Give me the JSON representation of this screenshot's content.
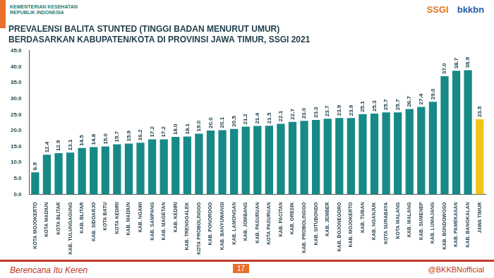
{
  "chart_data": {
    "type": "bar",
    "title": "PREVALENSI BALITA STUNTED (TINGGI BADAN MENURUT UMUR)",
    "subtitle": "BERDASARKAN KABUPATEN/KOTA DI PROVINSI JAWA TIMUR, SSGI 2021",
    "categories": [
      "KOTA MOJOKERTO",
      "KOTA MADIUN",
      "KOTA BLITAR",
      "KAB. TULUNGAGUNG",
      "KAB. BLITAR",
      "KAB. SIDOARJO",
      "KOTA BATU",
      "KOTA KEDIRI",
      "KAB. MADIUN",
      "KAB. NGAWI",
      "KAB. SAMPANG",
      "KAB. MAGETAN",
      "KAB. KEDIRI",
      "KAB. TRENGGALEK",
      "KOTA PROBOLINGGO",
      "KAB. PONOROGO",
      "KAB. BANYUWANGI",
      "KAB. LAMONGAN",
      "KAB. JOMBANG",
      "KAB. PASURUAN",
      "KOTA PASURUAN",
      "KAB. PACITAN",
      "KAB. GRESIK",
      "KAB. PROBOLINGGO",
      "KAB. SITUBONDO",
      "KAB. JEMBER",
      "KAB. BOJONEGORO",
      "KAB. MOJOKERTO",
      "KAB. TUBAN",
      "KAB. NGANJUK",
      "KOTA SURABAYA",
      "KOTA MALANG",
      "KAB. MALANG",
      "KAB. SUMENEP",
      "KAB. LUMAJANG",
      "KAB. BONDOWOSO",
      "KAB. PAMEKASAN",
      "KAB. BANGKALAN",
      "JAWA TIMUR"
    ],
    "values": [
      6.9,
      12.4,
      12.9,
      13.1,
      14.5,
      14.8,
      15.0,
      15.7,
      15.9,
      16.2,
      17.2,
      17.2,
      18.0,
      18.1,
      19.0,
      20.0,
      20.1,
      20.5,
      21.2,
      21.4,
      21.5,
      22.1,
      22.7,
      23.0,
      23.3,
      23.7,
      23.9,
      23.9,
      25.1,
      25.3,
      25.7,
      25.7,
      26.7,
      27.4,
      29.0,
      37.0,
      38.7,
      38.9,
      23.5
    ],
    "value_labels": [
      "6.9",
      "12.4",
      "12.9",
      "13.1",
      "14.5",
      "14.8",
      "15.0",
      "15.7",
      "15.9",
      "16.2",
      "17.2",
      "17.2",
      "18.0",
      "18.1",
      "19.0",
      "20.0",
      "20.1",
      "20.5",
      "21.2",
      "21.4",
      "21.5",
      "22.1",
      "22.7",
      "23.0",
      "23.3",
      "23.7",
      "23.9",
      "23.9",
      "25.1",
      "25.3",
      "25.7",
      "25.7",
      "26.7",
      "27.4",
      "29.0",
      "37.0",
      "38.7",
      "38.9",
      "23.5"
    ],
    "colors": [
      "#178a87",
      "#178a87",
      "#178a87",
      "#178a87",
      "#178a87",
      "#178a87",
      "#178a87",
      "#178a87",
      "#178a87",
      "#178a87",
      "#178a87",
      "#178a87",
      "#178a87",
      "#178a87",
      "#178a87",
      "#178a87",
      "#178a87",
      "#178a87",
      "#178a87",
      "#178a87",
      "#178a87",
      "#178a87",
      "#178a87",
      "#178a87",
      "#178a87",
      "#178a87",
      "#178a87",
      "#178a87",
      "#178a87",
      "#178a87",
      "#178a87",
      "#178a87",
      "#178a87",
      "#178a87",
      "#178a87",
      "#178a87",
      "#178a87",
      "#178a87",
      "#f0c419"
    ],
    "ylim": [
      0,
      45
    ],
    "yticks": [
      {
        "value": 0,
        "label": "0.0"
      },
      {
        "value": 5,
        "label": "5.0"
      },
      {
        "value": 10,
        "label": "10.0"
      },
      {
        "value": 15,
        "label": "15.0"
      },
      {
        "value": 20,
        "label": "20.0"
      },
      {
        "value": 25,
        "label": "25.0"
      },
      {
        "value": 30,
        "label": "30.0"
      },
      {
        "value": 35,
        "label": "35.0"
      },
      {
        "value": 40,
        "label": "40.0"
      },
      {
        "value": 45,
        "label": "45.0"
      }
    ],
    "grid": false,
    "data_labels": true,
    "annotations": [
      "KEMENTERIAN KESEHATAN REPUBLIK INDONESIA",
      "SSGI",
      "bkkbn",
      "17",
      "Berencana Itu Keren",
      "@BKKBNofficial"
    ]
  }
}
